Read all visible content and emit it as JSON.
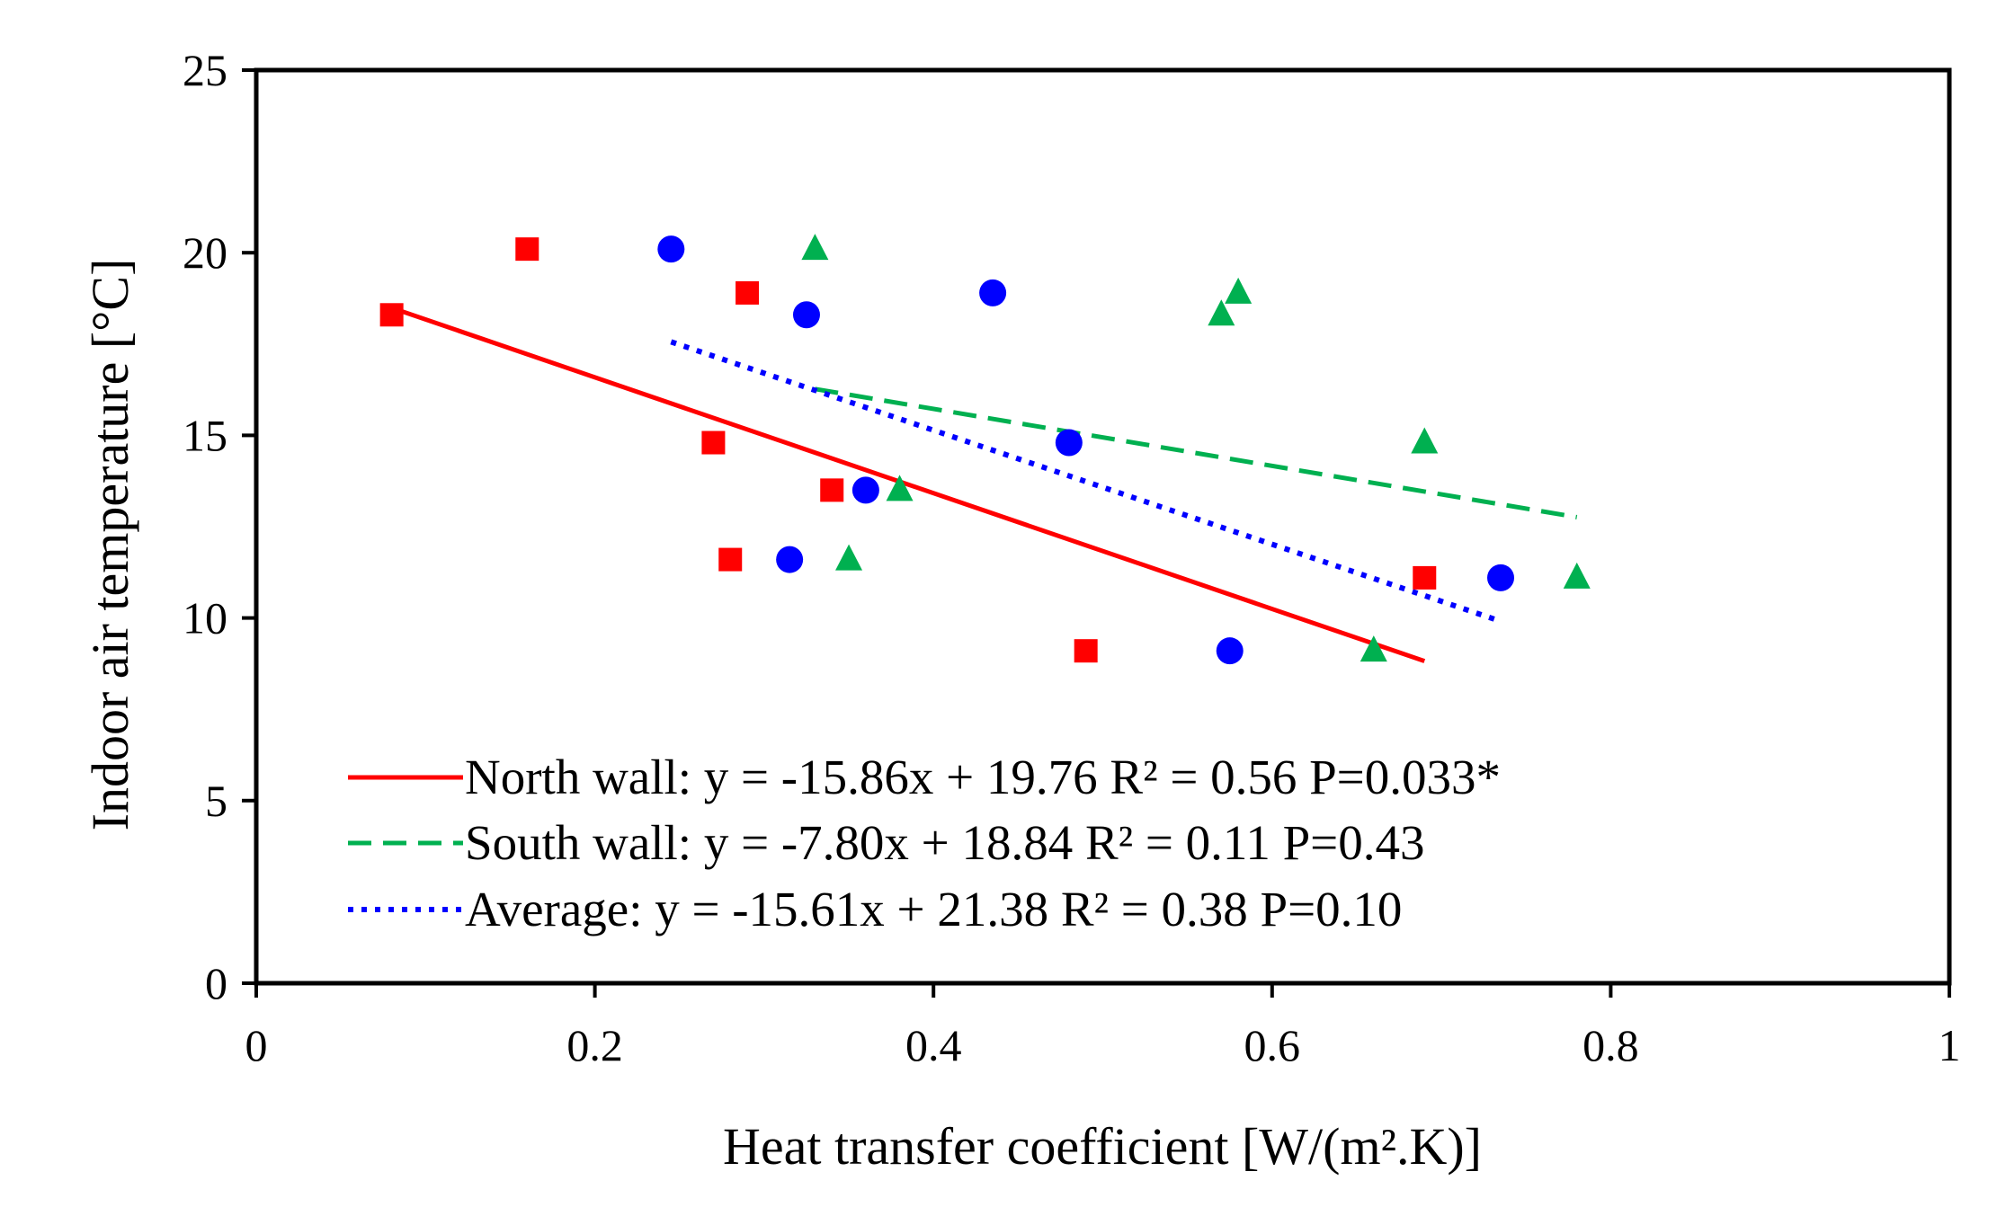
{
  "chart_data": {
    "type": "scatter",
    "xlabel": "Heat transfer coefficient  [W/(m².K)]",
    "ylabel": "Indoor air temperature [°C]",
    "xlim": [
      0,
      1
    ],
    "ylim": [
      0,
      25
    ],
    "xticks": [
      0,
      0.2,
      0.4,
      0.6,
      0.8,
      1
    ],
    "xtick_labels": [
      "0",
      "0.2",
      "0.4",
      "0.6",
      "0.8",
      "1"
    ],
    "yticks": [
      0,
      5,
      10,
      15,
      20,
      25
    ],
    "ytick_labels": [
      "0",
      "5",
      "10",
      "15",
      "20",
      "25"
    ],
    "grid": false,
    "legend_position": "bottom-left",
    "series": [
      {
        "key": "north",
        "name": "North wall",
        "marker": "square",
        "color": "#ff0000",
        "points": [
          [
            0.08,
            18.3
          ],
          [
            0.16,
            20.1
          ],
          [
            0.29,
            18.9
          ],
          [
            0.27,
            14.8
          ],
          [
            0.34,
            13.5
          ],
          [
            0.28,
            11.6
          ],
          [
            0.49,
            9.1
          ],
          [
            0.69,
            11.1
          ]
        ]
      },
      {
        "key": "south",
        "name": "South wall",
        "marker": "triangle",
        "color": "#00b050",
        "points": [
          [
            0.33,
            20.1
          ],
          [
            0.57,
            18.3
          ],
          [
            0.58,
            18.9
          ],
          [
            0.69,
            14.8
          ],
          [
            0.38,
            13.5
          ],
          [
            0.35,
            11.6
          ],
          [
            0.66,
            9.1
          ],
          [
            0.78,
            11.1
          ]
        ]
      },
      {
        "key": "average",
        "name": "Average",
        "marker": "circle",
        "color": "#0000ff",
        "points": [
          [
            0.245,
            20.1
          ],
          [
            0.325,
            18.3
          ],
          [
            0.435,
            18.9
          ],
          [
            0.48,
            14.8
          ],
          [
            0.36,
            13.5
          ],
          [
            0.315,
            11.6
          ],
          [
            0.575,
            9.1
          ],
          [
            0.735,
            11.1
          ]
        ]
      }
    ],
    "trendlines": [
      {
        "key": "north",
        "color": "#ff0000",
        "style": "solid",
        "x": [
          0.08,
          0.69
        ],
        "y": [
          18.49,
          8.82
        ]
      },
      {
        "key": "south",
        "color": "#00b050",
        "style": "dashed",
        "x": [
          0.33,
          0.78
        ],
        "y": [
          16.27,
          12.76
        ]
      },
      {
        "key": "average",
        "color": "#0000ff",
        "style": "dotted",
        "x": [
          0.245,
          0.735
        ],
        "y": [
          17.56,
          9.91
        ]
      }
    ],
    "legend": [
      {
        "key": "north",
        "label": "North wall: y = -15.86x + 19.76  R² = 0.56  P=0.033*"
      },
      {
        "key": "south",
        "label": "South wall: y = -7.80x + 18.84  R² = 0.11  P=0.43"
      },
      {
        "key": "average",
        "label": "Average: y = -15.61x + 21.38  R² = 0.38  P=0.10"
      }
    ]
  }
}
